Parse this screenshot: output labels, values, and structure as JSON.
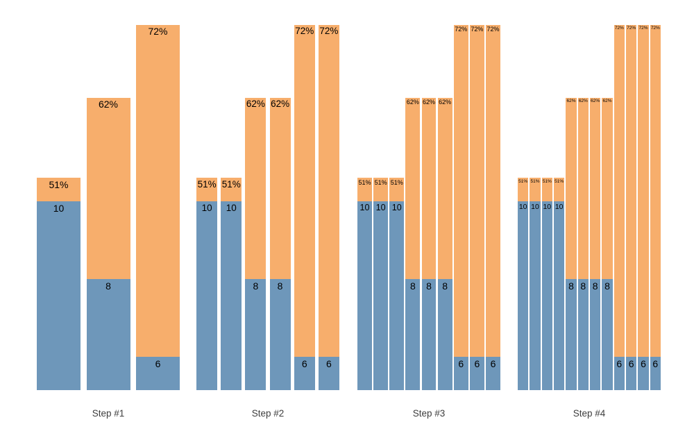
{
  "colors": {
    "count_segment": "#6e97ba",
    "percent_segment": "#f7ae6c",
    "bar_label": "#000000",
    "step_label": "#3d3d3d",
    "background": "#ffffff"
  },
  "chart_data": {
    "type": "bar",
    "variant": "grouped funnel steps; each bar = blue count segment (bottom) with orange percent bar rising above it",
    "title": "",
    "xlabel": "",
    "ylabel": "",
    "axes_visible": false,
    "legend": null,
    "categories": [
      "Step #1",
      "Step #2",
      "Step #3",
      "Step #4"
    ],
    "count_values": [
      10,
      8,
      6
    ],
    "percent_values": [
      51,
      62,
      72
    ],
    "groups": [
      {
        "label": "Step #1",
        "bars": [
          {
            "count": 10,
            "count_label": "10",
            "percent": 51,
            "percent_label": "51%"
          },
          {
            "count": 8,
            "count_label": "8",
            "percent": 62,
            "percent_label": "62%"
          },
          {
            "count": 6,
            "count_label": "6",
            "percent": 72,
            "percent_label": "72%"
          }
        ]
      },
      {
        "label": "Step #2",
        "bars": [
          {
            "count": 10,
            "count_label": "10",
            "percent": 51,
            "percent_label": "51%"
          },
          {
            "count": 10,
            "count_label": "10",
            "percent": 51,
            "percent_label": "51%"
          },
          {
            "count": 8,
            "count_label": "8",
            "percent": 62,
            "percent_label": "62%"
          },
          {
            "count": 8,
            "count_label": "8",
            "percent": 62,
            "percent_label": "62%"
          },
          {
            "count": 6,
            "count_label": "6",
            "percent": 72,
            "percent_label": "72%"
          },
          {
            "count": 6,
            "count_label": "6",
            "percent": 72,
            "percent_label": "72%"
          }
        ]
      },
      {
        "label": "Step #3",
        "bars": [
          {
            "count": 10,
            "count_label": "10",
            "percent": 51,
            "percent_label": "51%"
          },
          {
            "count": 10,
            "count_label": "10",
            "percent": 51,
            "percent_label": "51%"
          },
          {
            "count": 10,
            "count_label": "10",
            "percent": 51,
            "percent_label": "51%"
          },
          {
            "count": 8,
            "count_label": "8",
            "percent": 62,
            "percent_label": "62%"
          },
          {
            "count": 8,
            "count_label": "8",
            "percent": 62,
            "percent_label": "62%"
          },
          {
            "count": 8,
            "count_label": "8",
            "percent": 62,
            "percent_label": "62%"
          },
          {
            "count": 6,
            "count_label": "6",
            "percent": 72,
            "percent_label": "72%"
          },
          {
            "count": 6,
            "count_label": "6",
            "percent": 72,
            "percent_label": "72%"
          },
          {
            "count": 6,
            "count_label": "6",
            "percent": 72,
            "percent_label": "72%"
          }
        ]
      },
      {
        "label": "Step #4",
        "bars": [
          {
            "count": 10,
            "count_label": "10",
            "percent": 51,
            "percent_label": "51%"
          },
          {
            "count": 10,
            "count_label": "10",
            "percent": 51,
            "percent_label": "51%"
          },
          {
            "count": 10,
            "count_label": "10",
            "percent": 51,
            "percent_label": "51%"
          },
          {
            "count": 10,
            "count_label": "10",
            "percent": 51,
            "percent_label": "51%"
          },
          {
            "count": 8,
            "count_label": "8",
            "percent": 62,
            "percent_label": "62%"
          },
          {
            "count": 8,
            "count_label": "8",
            "percent": 62,
            "percent_label": "62%"
          },
          {
            "count": 8,
            "count_label": "8",
            "percent": 62,
            "percent_label": "62%"
          },
          {
            "count": 8,
            "count_label": "8",
            "percent": 62,
            "percent_label": "62%"
          },
          {
            "count": 6,
            "count_label": "6",
            "percent": 72,
            "percent_label": "72%"
          },
          {
            "count": 6,
            "count_label": "6",
            "percent": 72,
            "percent_label": "72%"
          },
          {
            "count": 6,
            "count_label": "6",
            "percent": 72,
            "percent_label": "72%"
          },
          {
            "count": 6,
            "count_label": "6",
            "percent": 72,
            "percent_label": "72%"
          }
        ]
      }
    ]
  }
}
